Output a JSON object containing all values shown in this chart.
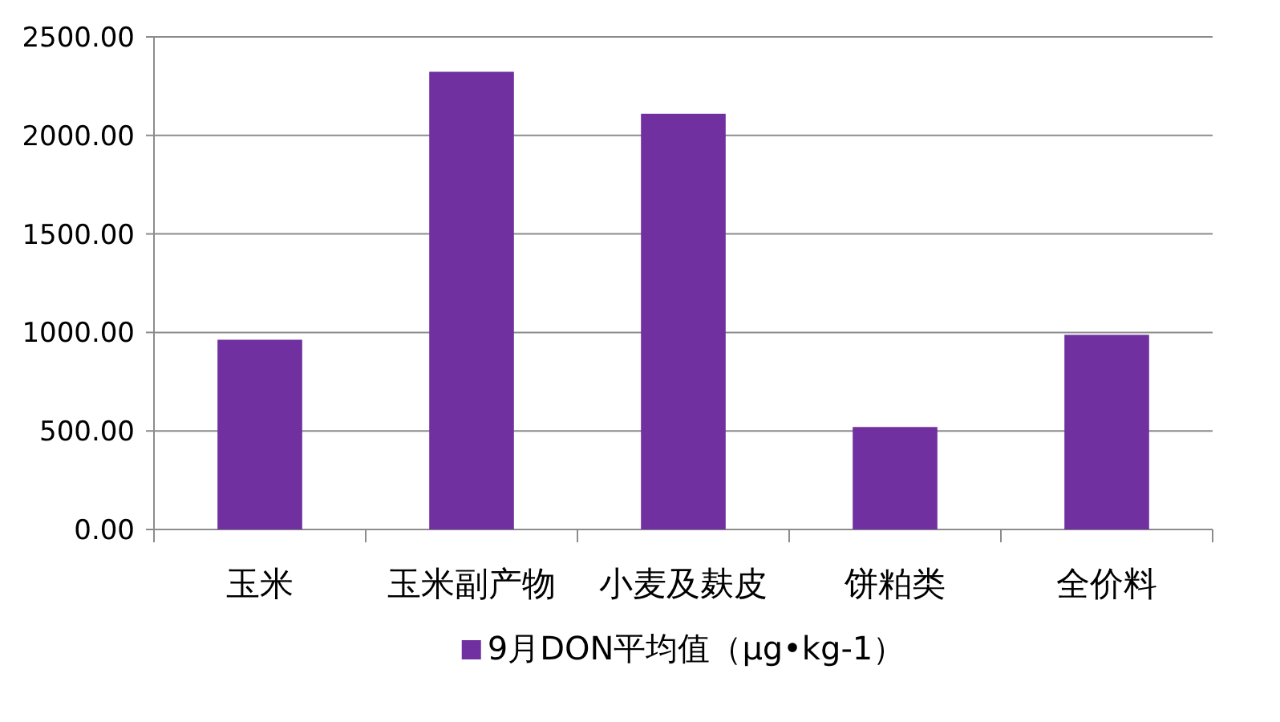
{
  "chart_data": {
    "type": "bar",
    "categories": [
      "玉米",
      "玉米副产物",
      "小麦及麸皮",
      "饼粕类",
      "全价料"
    ],
    "series": [
      {
        "name": "9月DON平均值（μg•kg-1）",
        "color": "#7030a0",
        "values": [
          963,
          2323,
          2110,
          520,
          988
        ]
      }
    ],
    "ylim": [
      0,
      2500
    ],
    "yticks": [
      {
        "value": 0,
        "label": "0.00"
      },
      {
        "value": 500,
        "label": "500.00"
      },
      {
        "value": 1000,
        "label": "1000.00"
      },
      {
        "value": 1500,
        "label": "1500.00"
      },
      {
        "value": 2000,
        "label": "2000.00"
      },
      {
        "value": 2500,
        "label": "2500.00"
      }
    ],
    "grid": "y",
    "legend": "bottom"
  }
}
